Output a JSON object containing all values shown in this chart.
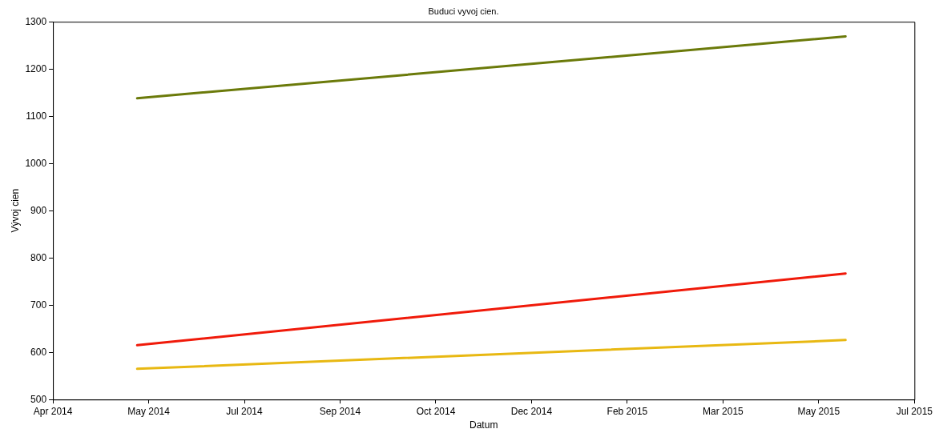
{
  "chart_data": {
    "type": "line",
    "title": "Buduci vyvoj cien.",
    "xlabel": "Datum",
    "ylabel": "Vývoj cien",
    "x": [
      "2014-05-24",
      "2015-05-29"
    ],
    "series": [
      {
        "color": "#6b7a0a",
        "values": [
          1138,
          1269
        ]
      },
      {
        "color": "#f01a0a",
        "values": [
          615,
          767
        ]
      },
      {
        "color": "#e8b812",
        "values": [
          565,
          626
        ]
      }
    ],
    "xlim": [
      "2014-04-10",
      "2015-07-04"
    ],
    "xticks": [
      {
        "value": "2014-04-10",
        "label": "Apr 2014"
      },
      {
        "value": "2014-05-30",
        "label": "May 2014"
      },
      {
        "value": "2014-07-19",
        "label": "Jul 2014"
      },
      {
        "value": "2014-09-07",
        "label": "Sep 2014"
      },
      {
        "value": "2014-10-27",
        "label": "Oct 2014"
      },
      {
        "value": "2014-12-16",
        "label": "Dec 2014"
      },
      {
        "value": "2015-02-04",
        "label": "Feb 2015"
      },
      {
        "value": "2015-03-26",
        "label": "Mar 2015"
      },
      {
        "value": "2015-05-15",
        "label": "May 2015"
      },
      {
        "value": "2015-07-04",
        "label": "Jul 2015"
      }
    ],
    "ylim": [
      500,
      1300
    ],
    "yticks": [
      500,
      600,
      700,
      800,
      900,
      1000,
      1100,
      1200,
      1300
    ],
    "grid": false,
    "legend": false,
    "marker": "none",
    "line_style": "solid"
  }
}
